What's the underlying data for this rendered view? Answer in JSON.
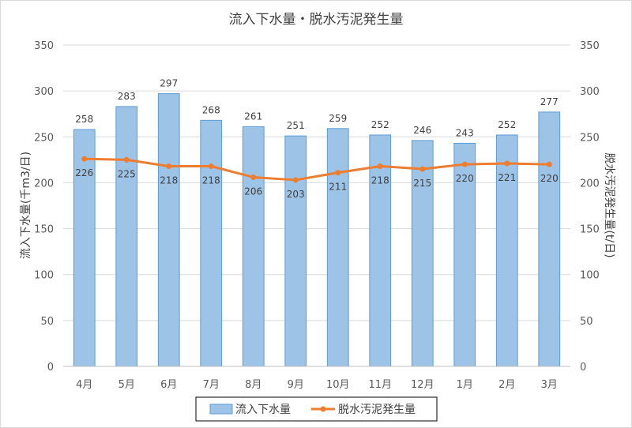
{
  "chart_data": {
    "type": "bar",
    "title": "流入下水量・脱水汚泥発生量",
    "categories": [
      "4月",
      "5月",
      "6月",
      "7月",
      "8月",
      "9月",
      "10月",
      "11月",
      "12月",
      "1月",
      "2月",
      "3月"
    ],
    "series": [
      {
        "name": "流入下水量",
        "type": "bar",
        "axis": "left",
        "values": [
          258,
          283,
          297,
          268,
          261,
          251,
          259,
          252,
          246,
          243,
          252,
          277
        ]
      },
      {
        "name": "脱水汚泥発生量",
        "type": "line",
        "axis": "right",
        "values": [
          226,
          225,
          218,
          218,
          206,
          203,
          211,
          218,
          215,
          220,
          221,
          220
        ]
      }
    ],
    "ylabel_left": "流入下水量(千m3/日)",
    "ylabel_right": "脱水汚泥発生量(t/日)",
    "ylim_left": [
      0,
      350
    ],
    "ylim_right": [
      0,
      350
    ],
    "yticks": [
      0,
      50,
      100,
      150,
      200,
      250,
      300,
      350
    ],
    "grid": true,
    "legend": "bottom",
    "colors": {
      "bar_fill": "#9dc3e6",
      "bar_stroke": "#5b9bd5",
      "line": "#ed7d31",
      "grid": "#d9d9d9"
    }
  }
}
